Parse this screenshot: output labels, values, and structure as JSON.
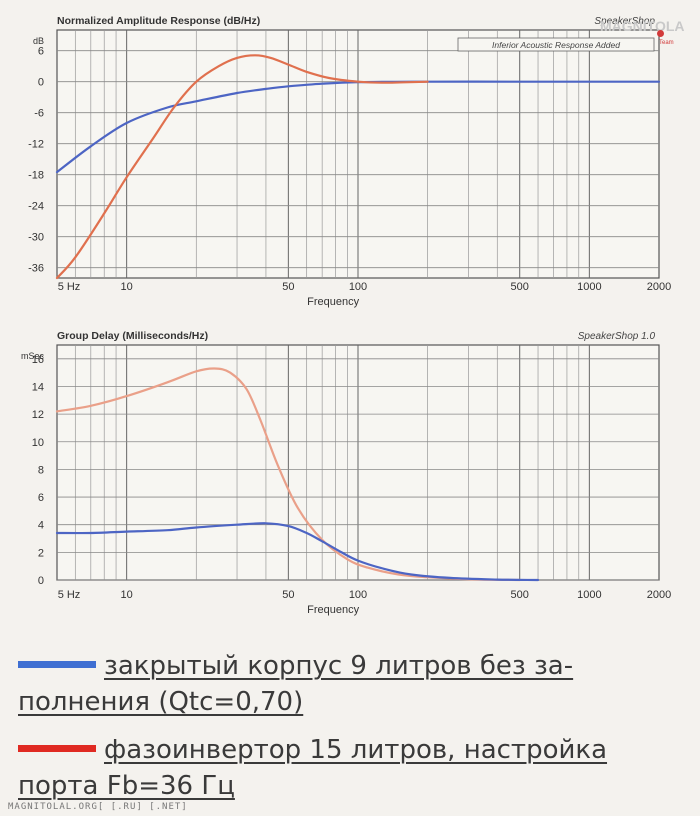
{
  "colors": {
    "blue": "#4d65c4",
    "red": "#e0704e",
    "red_pale": "#eaa089",
    "legend_blue": "#3f6fd2",
    "legend_red": "#e02a22"
  },
  "logo": {
    "text": "MAGNITOLA",
    "team": "Team"
  },
  "chart_data": [
    {
      "type": "line",
      "title": "Normalized Amplitude Response (dB/Hz)",
      "software_label": "SpeakerShop",
      "subtitle_box": "Inferior Acoustic Response Added",
      "unit_label": "dB",
      "xlabel": "Frequency",
      "xscale": "log",
      "xlim": [
        5,
        2000
      ],
      "ylim": [
        -38,
        10
      ],
      "x_ticks": [
        "5 Hz",
        "10",
        "50",
        "100",
        "500",
        "1000",
        "2000"
      ],
      "y_ticks": [
        "6",
        "0",
        "-6",
        "-12",
        "-18",
        "-24",
        "-30",
        "-36"
      ],
      "grid": true,
      "series": [
        {
          "color": "blue",
          "x": [
            5,
            7,
            10,
            15,
            20,
            30,
            40,
            50,
            70,
            100,
            200,
            500,
            1000,
            2000
          ],
          "y": [
            -17.5,
            -12.5,
            -8,
            -5,
            -3.8,
            -2.2,
            -1.4,
            -0.9,
            -0.4,
            -0.1,
            0,
            0,
            0,
            0
          ]
        },
        {
          "color": "red",
          "x": [
            5,
            6,
            8,
            10,
            13,
            16,
            20,
            25,
            30,
            36,
            42,
            50,
            60,
            75,
            100,
            130,
            200
          ],
          "y": [
            -38,
            -34,
            -25.5,
            -18.5,
            -11,
            -5,
            0,
            3,
            4.6,
            5.1,
            4.6,
            3.3,
            1.9,
            0.7,
            0,
            -0.2,
            0
          ]
        }
      ]
    },
    {
      "type": "line",
      "title": "Group Delay (Milliseconds/Hz)",
      "software_label": "SpeakerShop 1.0",
      "unit_label": "mSec",
      "xlabel": "Frequency",
      "xscale": "log",
      "xlim": [
        5,
        2000
      ],
      "ylim": [
        0,
        17
      ],
      "x_ticks": [
        "5 Hz",
        "10",
        "50",
        "100",
        "500",
        "1000",
        "2000"
      ],
      "y_ticks": [
        "16",
        "14",
        "12",
        "10",
        "8",
        "6",
        "4",
        "2",
        "0"
      ],
      "grid": true,
      "series": [
        {
          "color": "red_pale",
          "x": [
            5,
            7,
            10,
            15,
            20,
            24,
            28,
            33,
            38,
            45,
            55,
            70,
            90,
            110,
            150,
            200,
            300,
            500
          ],
          "y": [
            12.2,
            12.6,
            13.3,
            14.3,
            15.1,
            15.3,
            15,
            13.8,
            11.5,
            8.3,
            5.2,
            2.9,
            1.5,
            0.9,
            0.4,
            0.2,
            0.05,
            0
          ]
        },
        {
          "color": "blue",
          "x": [
            5,
            7,
            10,
            15,
            20,
            30,
            40,
            50,
            60,
            70,
            85,
            100,
            130,
            170,
            250,
            400,
            600
          ],
          "y": [
            3.4,
            3.4,
            3.5,
            3.6,
            3.8,
            4.0,
            4.1,
            3.9,
            3.4,
            2.8,
            2.0,
            1.4,
            0.8,
            0.4,
            0.15,
            0.03,
            0
          ]
        }
      ]
    }
  ],
  "legend": [
    {
      "color": "legend_blue",
      "line1": "закрытый корпус 9 литров без за-",
      "line2": "полнения (Qtc=0,70)"
    },
    {
      "color": "legend_red",
      "line1": "фазоинвертор 15 литров, настройка",
      "line2": "порта Fb=36 Гц"
    }
  ],
  "footer": "MAGNITOLAL.ORG[ [.RU] [.NET]"
}
